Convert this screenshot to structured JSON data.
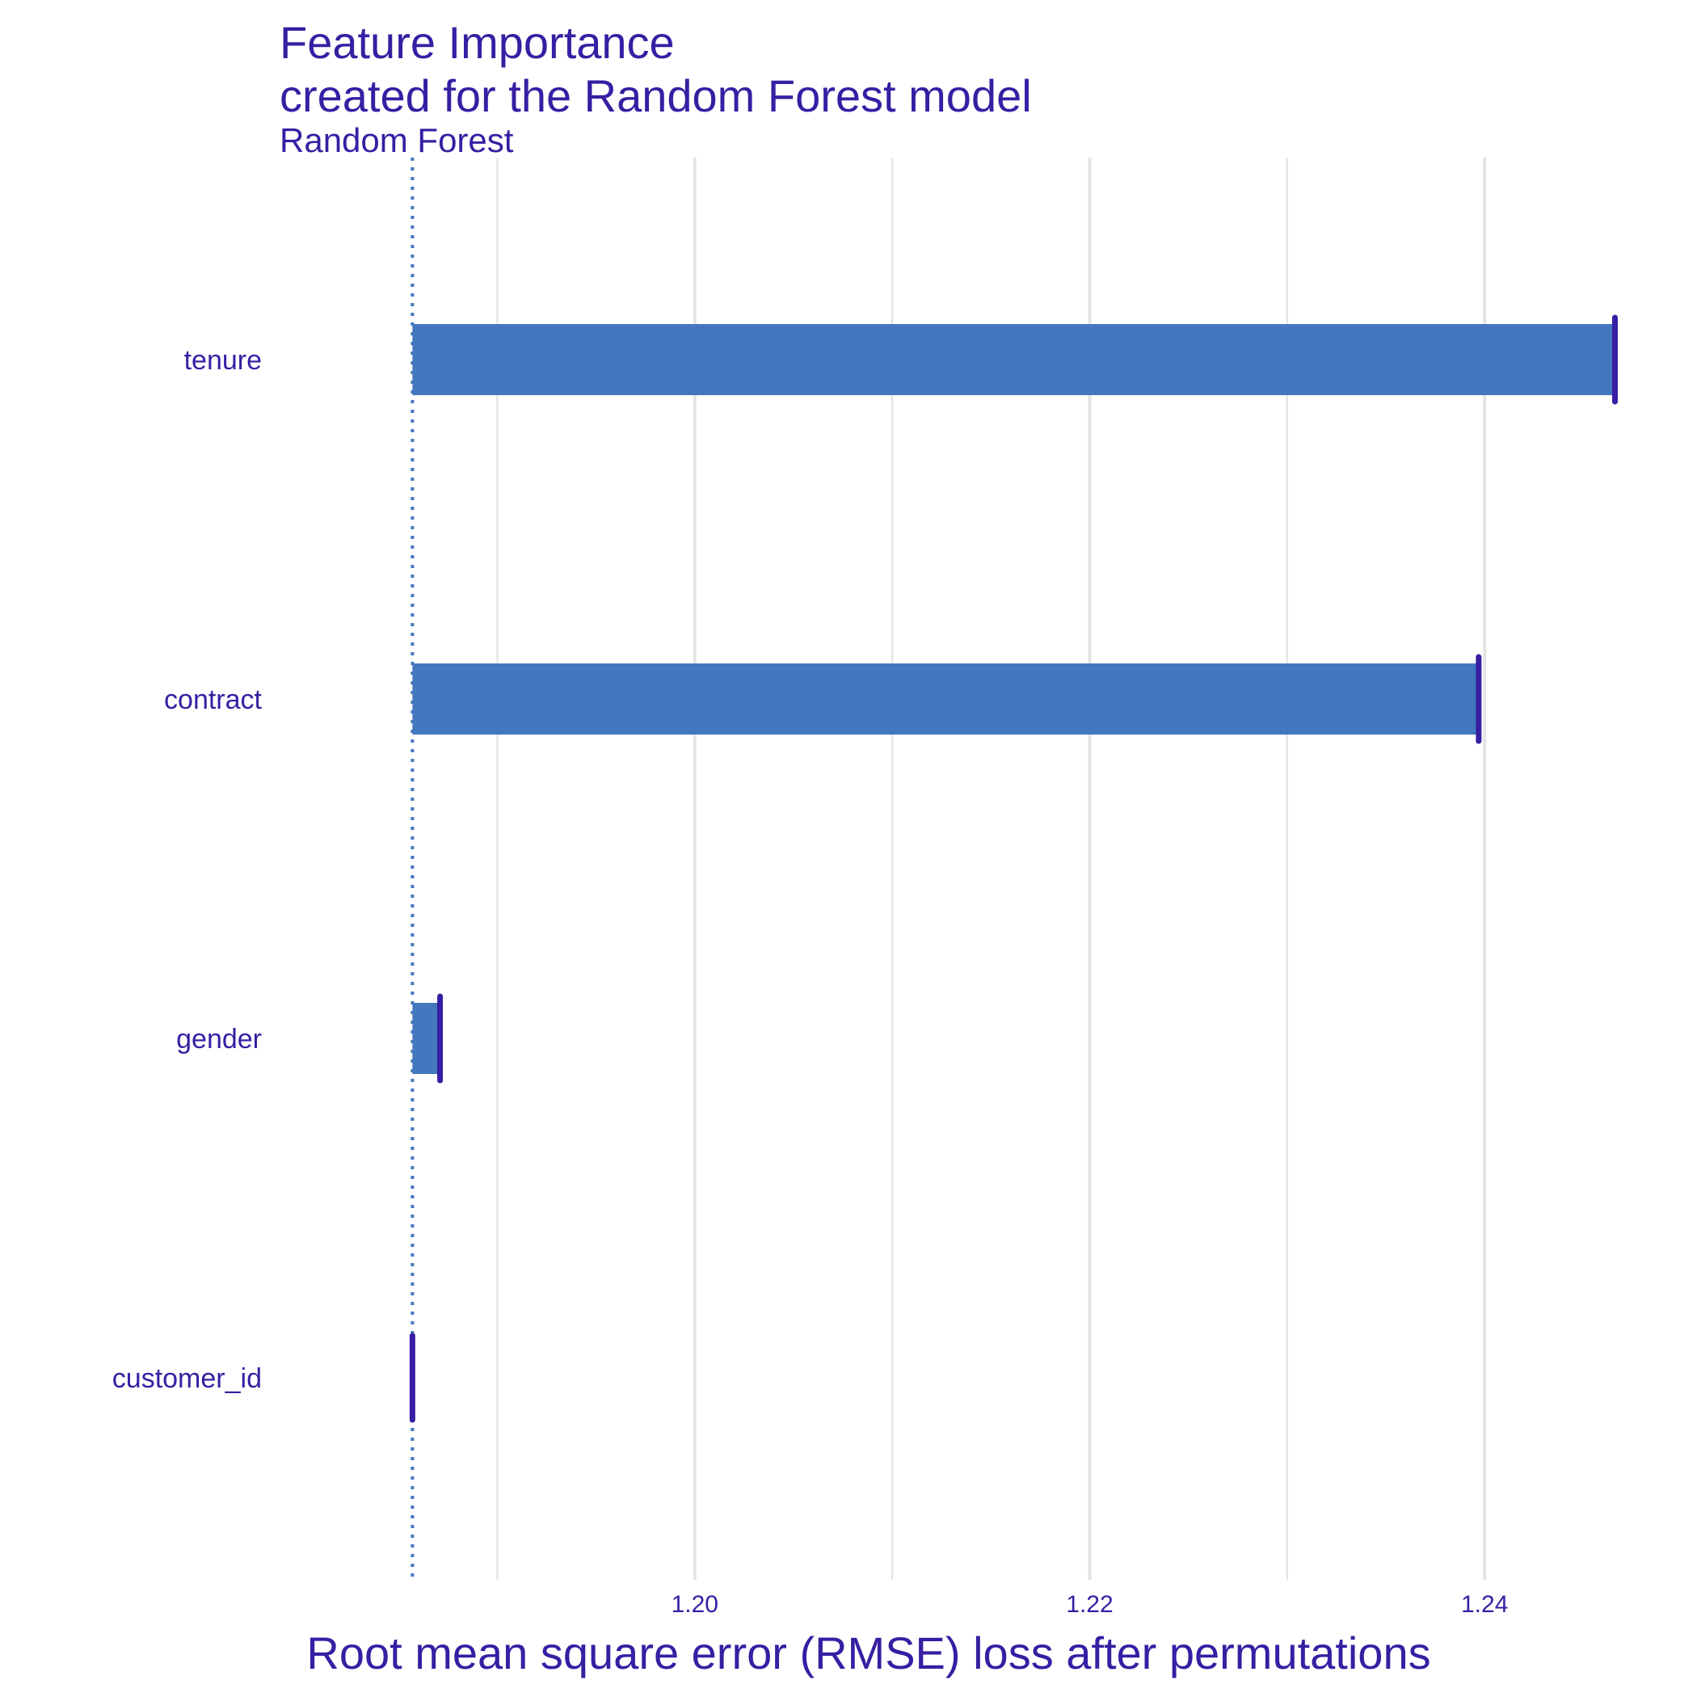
{
  "chart_data": {
    "type": "bar",
    "orientation": "horizontal",
    "title": "Feature Importance",
    "subtitle": "created for the Random Forest model",
    "panel_label": "Random Forest",
    "xlabel": "Root mean square error (RMSE) loss after permutations",
    "ylabel": "",
    "baseline": 1.1857,
    "xlim": [
      1.1775,
      1.2483
    ],
    "xticks": [
      1.2,
      1.22,
      1.24
    ],
    "xtick_labels": [
      "1.20",
      "1.22",
      "1.24"
    ],
    "minor_gridlines": [
      1.19,
      1.21,
      1.23
    ],
    "grid": true,
    "categories": [
      "tenure",
      "contract",
      "gender",
      "customer_id"
    ],
    "values": [
      1.2466,
      1.2397,
      1.1871,
      1.1857
    ],
    "colors": {
      "bar": "#4378bf",
      "whisker": "#371ea3",
      "baseline": "#4378bf",
      "text": "#371ea3",
      "grid": "#e4e4e4"
    }
  }
}
